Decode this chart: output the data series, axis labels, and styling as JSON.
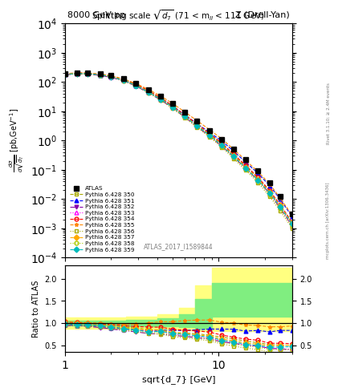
{
  "title_left": "8000 GeV pp",
  "title_right": "Z (Drell-Yan)",
  "plot_title": "Splitting scale $\\sqrt{d_7}$ (71 < m$_{ll}$ < 111 GeV)",
  "xlabel": "sqrt{d_7} [GeV]",
  "ylabel_main": "$\\frac{d\\sigma}{d\\sqrt{\\overline{d_7}}}$ [pb,GeV$^{-1}$]",
  "ylabel_ratio": "Ratio to ATLAS",
  "rivet_label": "Rivet 3.1.10; ≥ 2.4M events",
  "mcplots_label": "mcplots.cern.ch [arXiv:1306.3436]",
  "atlas_id": "ATLAS_2017_I1589844",
  "x_data": [
    1.0,
    1.2,
    1.4,
    1.7,
    2.0,
    2.4,
    2.9,
    3.5,
    4.2,
    5.0,
    6.0,
    7.2,
    8.7,
    10.5,
    12.5,
    15.0,
    18.0,
    21.5,
    25.0,
    30.0
  ],
  "atlas_y": [
    185,
    200,
    200,
    185,
    165,
    130,
    90,
    55,
    32,
    18,
    9.0,
    4.5,
    2.2,
    1.1,
    0.5,
    0.22,
    0.09,
    0.035,
    0.012,
    0.003
  ],
  "series": [
    {
      "label": "Pythia 6.428 350",
      "color": "#aaaa00",
      "marker": "s",
      "linestyle": "--",
      "fillstyle": "none",
      "y": [
        185,
        198,
        195,
        178,
        155,
        118,
        80,
        47,
        27,
        14,
        7.0,
        3.4,
        1.6,
        0.75,
        0.32,
        0.13,
        0.05,
        0.018,
        0.006,
        0.0015
      ]
    },
    {
      "label": "Pythia 6.428 351",
      "color": "#0000ff",
      "marker": "^",
      "linestyle": "--",
      "fillstyle": "full",
      "y": [
        178,
        190,
        188,
        170,
        148,
        112,
        76,
        45,
        27,
        15,
        7.5,
        3.8,
        1.9,
        0.95,
        0.43,
        0.18,
        0.075,
        0.028,
        0.01,
        0.0025
      ]
    },
    {
      "label": "Pythia 6.428 352",
      "color": "#8800aa",
      "marker": "v",
      "linestyle": "-.",
      "fillstyle": "full",
      "y": [
        175,
        188,
        185,
        166,
        143,
        108,
        72,
        42,
        24,
        13,
        6.3,
        3.0,
        1.4,
        0.63,
        0.27,
        0.11,
        0.043,
        0.015,
        0.005,
        0.0012
      ]
    },
    {
      "label": "Pythia 6.428 353",
      "color": "#ff00ff",
      "marker": "^",
      "linestyle": ":",
      "fillstyle": "none",
      "y": [
        182,
        195,
        193,
        175,
        152,
        115,
        77,
        45,
        26,
        13.5,
        6.5,
        3.1,
        1.45,
        0.65,
        0.28,
        0.11,
        0.043,
        0.015,
        0.005,
        0.0012
      ]
    },
    {
      "label": "Pythia 6.428 354",
      "color": "#ff0000",
      "marker": "o",
      "linestyle": "--",
      "fillstyle": "none",
      "y": [
        190,
        202,
        200,
        182,
        160,
        122,
        83,
        50,
        29,
        15.5,
        7.5,
        3.7,
        1.75,
        0.8,
        0.34,
        0.14,
        0.055,
        0.019,
        0.0065,
        0.0016
      ]
    },
    {
      "label": "Pythia 6.428 355",
      "color": "#ff8800",
      "marker": "*",
      "linestyle": "--",
      "fillstyle": "full",
      "y": [
        192,
        204,
        202,
        185,
        163,
        126,
        88,
        55,
        33,
        18.5,
        9.5,
        4.8,
        2.35,
        1.12,
        0.5,
        0.21,
        0.085,
        0.032,
        0.011,
        0.0028
      ]
    },
    {
      "label": "Pythia 6.428 356",
      "color": "#aaaa00",
      "marker": "s",
      "linestyle": ":",
      "fillstyle": "none",
      "y": [
        178,
        190,
        188,
        170,
        147,
        110,
        73,
        42,
        24,
        12.5,
        6.0,
        2.85,
        1.32,
        0.58,
        0.24,
        0.095,
        0.036,
        0.012,
        0.004,
        0.001
      ]
    },
    {
      "label": "Pythia 6.428 357",
      "color": "#ffaa00",
      "marker": "D",
      "linestyle": "--",
      "fillstyle": "full",
      "y": [
        183,
        196,
        194,
        176,
        153,
        116,
        78,
        46,
        27,
        14.2,
        6.9,
        3.3,
        1.55,
        0.7,
        0.3,
        0.12,
        0.047,
        0.017,
        0.006,
        0.0015
      ]
    },
    {
      "label": "Pythia 6.428 358",
      "color": "#aacc00",
      "marker": "o",
      "linestyle": ":",
      "fillstyle": "none",
      "y": [
        180,
        192,
        190,
        172,
        149,
        112,
        75,
        44,
        25,
        13.2,
        6.4,
        3.05,
        1.4,
        0.62,
        0.265,
        0.105,
        0.041,
        0.014,
        0.0048,
        0.0012
      ]
    },
    {
      "label": "Pythia 6.428 359",
      "color": "#00bbbb",
      "marker": "D",
      "linestyle": "--",
      "fillstyle": "full",
      "y": [
        182,
        194,
        192,
        174,
        151,
        114,
        76,
        44,
        26,
        13.8,
        6.7,
        3.2,
        1.5,
        0.67,
        0.286,
        0.114,
        0.044,
        0.016,
        0.0055,
        0.0014
      ]
    }
  ],
  "ratio_bands": {
    "x_edges": [
      1.0,
      2.5,
      4.0,
      5.5,
      7.0,
      9.0,
      30.0
    ],
    "green_lo": [
      0.95,
      0.93,
      0.92,
      0.9,
      0.88,
      1.15
    ],
    "green_hi": [
      1.05,
      1.07,
      1.1,
      1.2,
      1.55,
      1.9
    ],
    "yellow_lo": [
      0.88,
      0.87,
      0.86,
      0.84,
      0.82,
      0.82
    ],
    "yellow_hi": [
      1.12,
      1.15,
      1.2,
      1.35,
      1.85,
      2.25
    ]
  },
  "xlim": [
    1.0,
    30.0
  ],
  "ylim_main": [
    0.0001,
    10000.0
  ],
  "ylim_ratio": [
    0.35,
    2.3
  ],
  "ratio_yticks": [
    0.5,
    1.0,
    1.5,
    2.0
  ]
}
